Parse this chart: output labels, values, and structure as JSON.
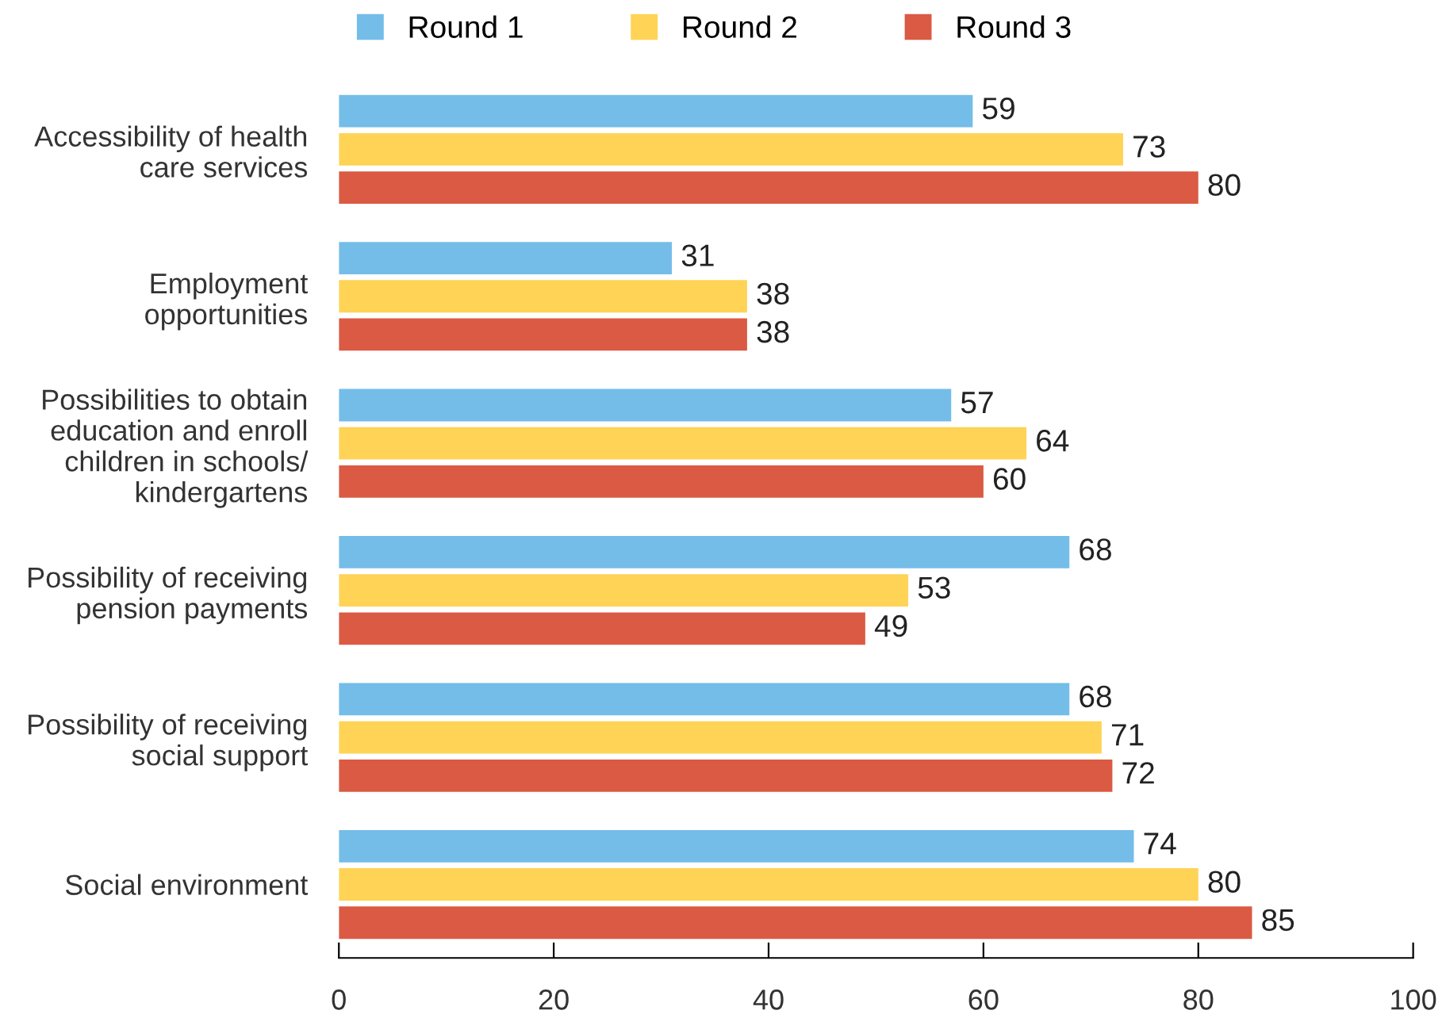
{
  "chart_data": {
    "type": "bar",
    "orientation": "horizontal",
    "categories": [
      "Accessibility of health\ncare services",
      "Employment\nopportunities",
      "Possibilities to obtain\neducation and enroll\nchildren in schools/\nkindergartens",
      "Possibility of receiving\npension payments",
      "Possibility of receiving\nsocial support",
      "Social environment"
    ],
    "series": [
      {
        "name": "Round 1",
        "color": "#74bde9",
        "values": [
          59,
          31,
          57,
          68,
          68,
          74
        ]
      },
      {
        "name": "Round 2",
        "color": "#fed356",
        "values": [
          73,
          38,
          64,
          53,
          71,
          80
        ]
      },
      {
        "name": "Round 3",
        "color": "#da5a43",
        "values": [
          80,
          38,
          60,
          49,
          72,
          85
        ]
      }
    ],
    "xlim": [
      0,
      100
    ],
    "xticks": [
      0,
      20,
      40,
      60,
      80,
      100
    ],
    "data_labels": true,
    "legend": "top",
    "grid": false
  }
}
